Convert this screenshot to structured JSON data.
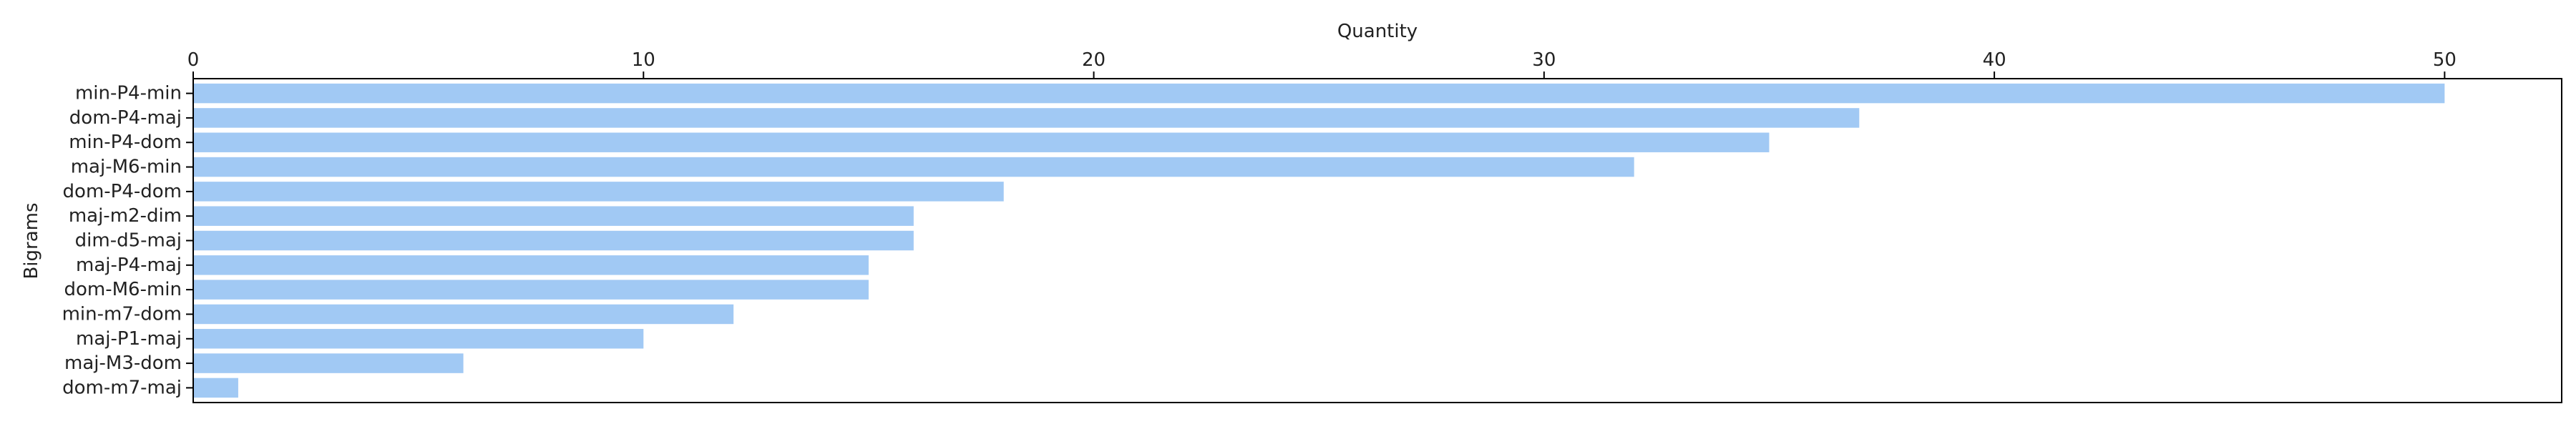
{
  "chart_data": {
    "type": "bar",
    "orientation": "horizontal",
    "xlabel": "Quantity",
    "ylabel": "Bigrams",
    "x_axis_position": "top",
    "xlim": [
      0,
      52.6
    ],
    "xticks": [
      0,
      10,
      20,
      30,
      40,
      50
    ],
    "grid": false,
    "bar_color": "#a1c9f4",
    "categories": [
      "min-P4-min",
      "dom-P4-maj",
      "min-P4-dom",
      "maj-M6-min",
      "dom-P4-dom",
      "maj-m2-dim",
      "dim-d5-maj",
      "maj-P4-maj",
      "dom-M6-min",
      "min-m7-dom",
      "maj-P1-maj",
      "maj-M3-dom",
      "dom-m7-maj"
    ],
    "values": [
      50,
      37,
      35,
      32,
      18,
      16,
      16,
      15,
      15,
      12,
      10,
      6,
      1
    ]
  }
}
